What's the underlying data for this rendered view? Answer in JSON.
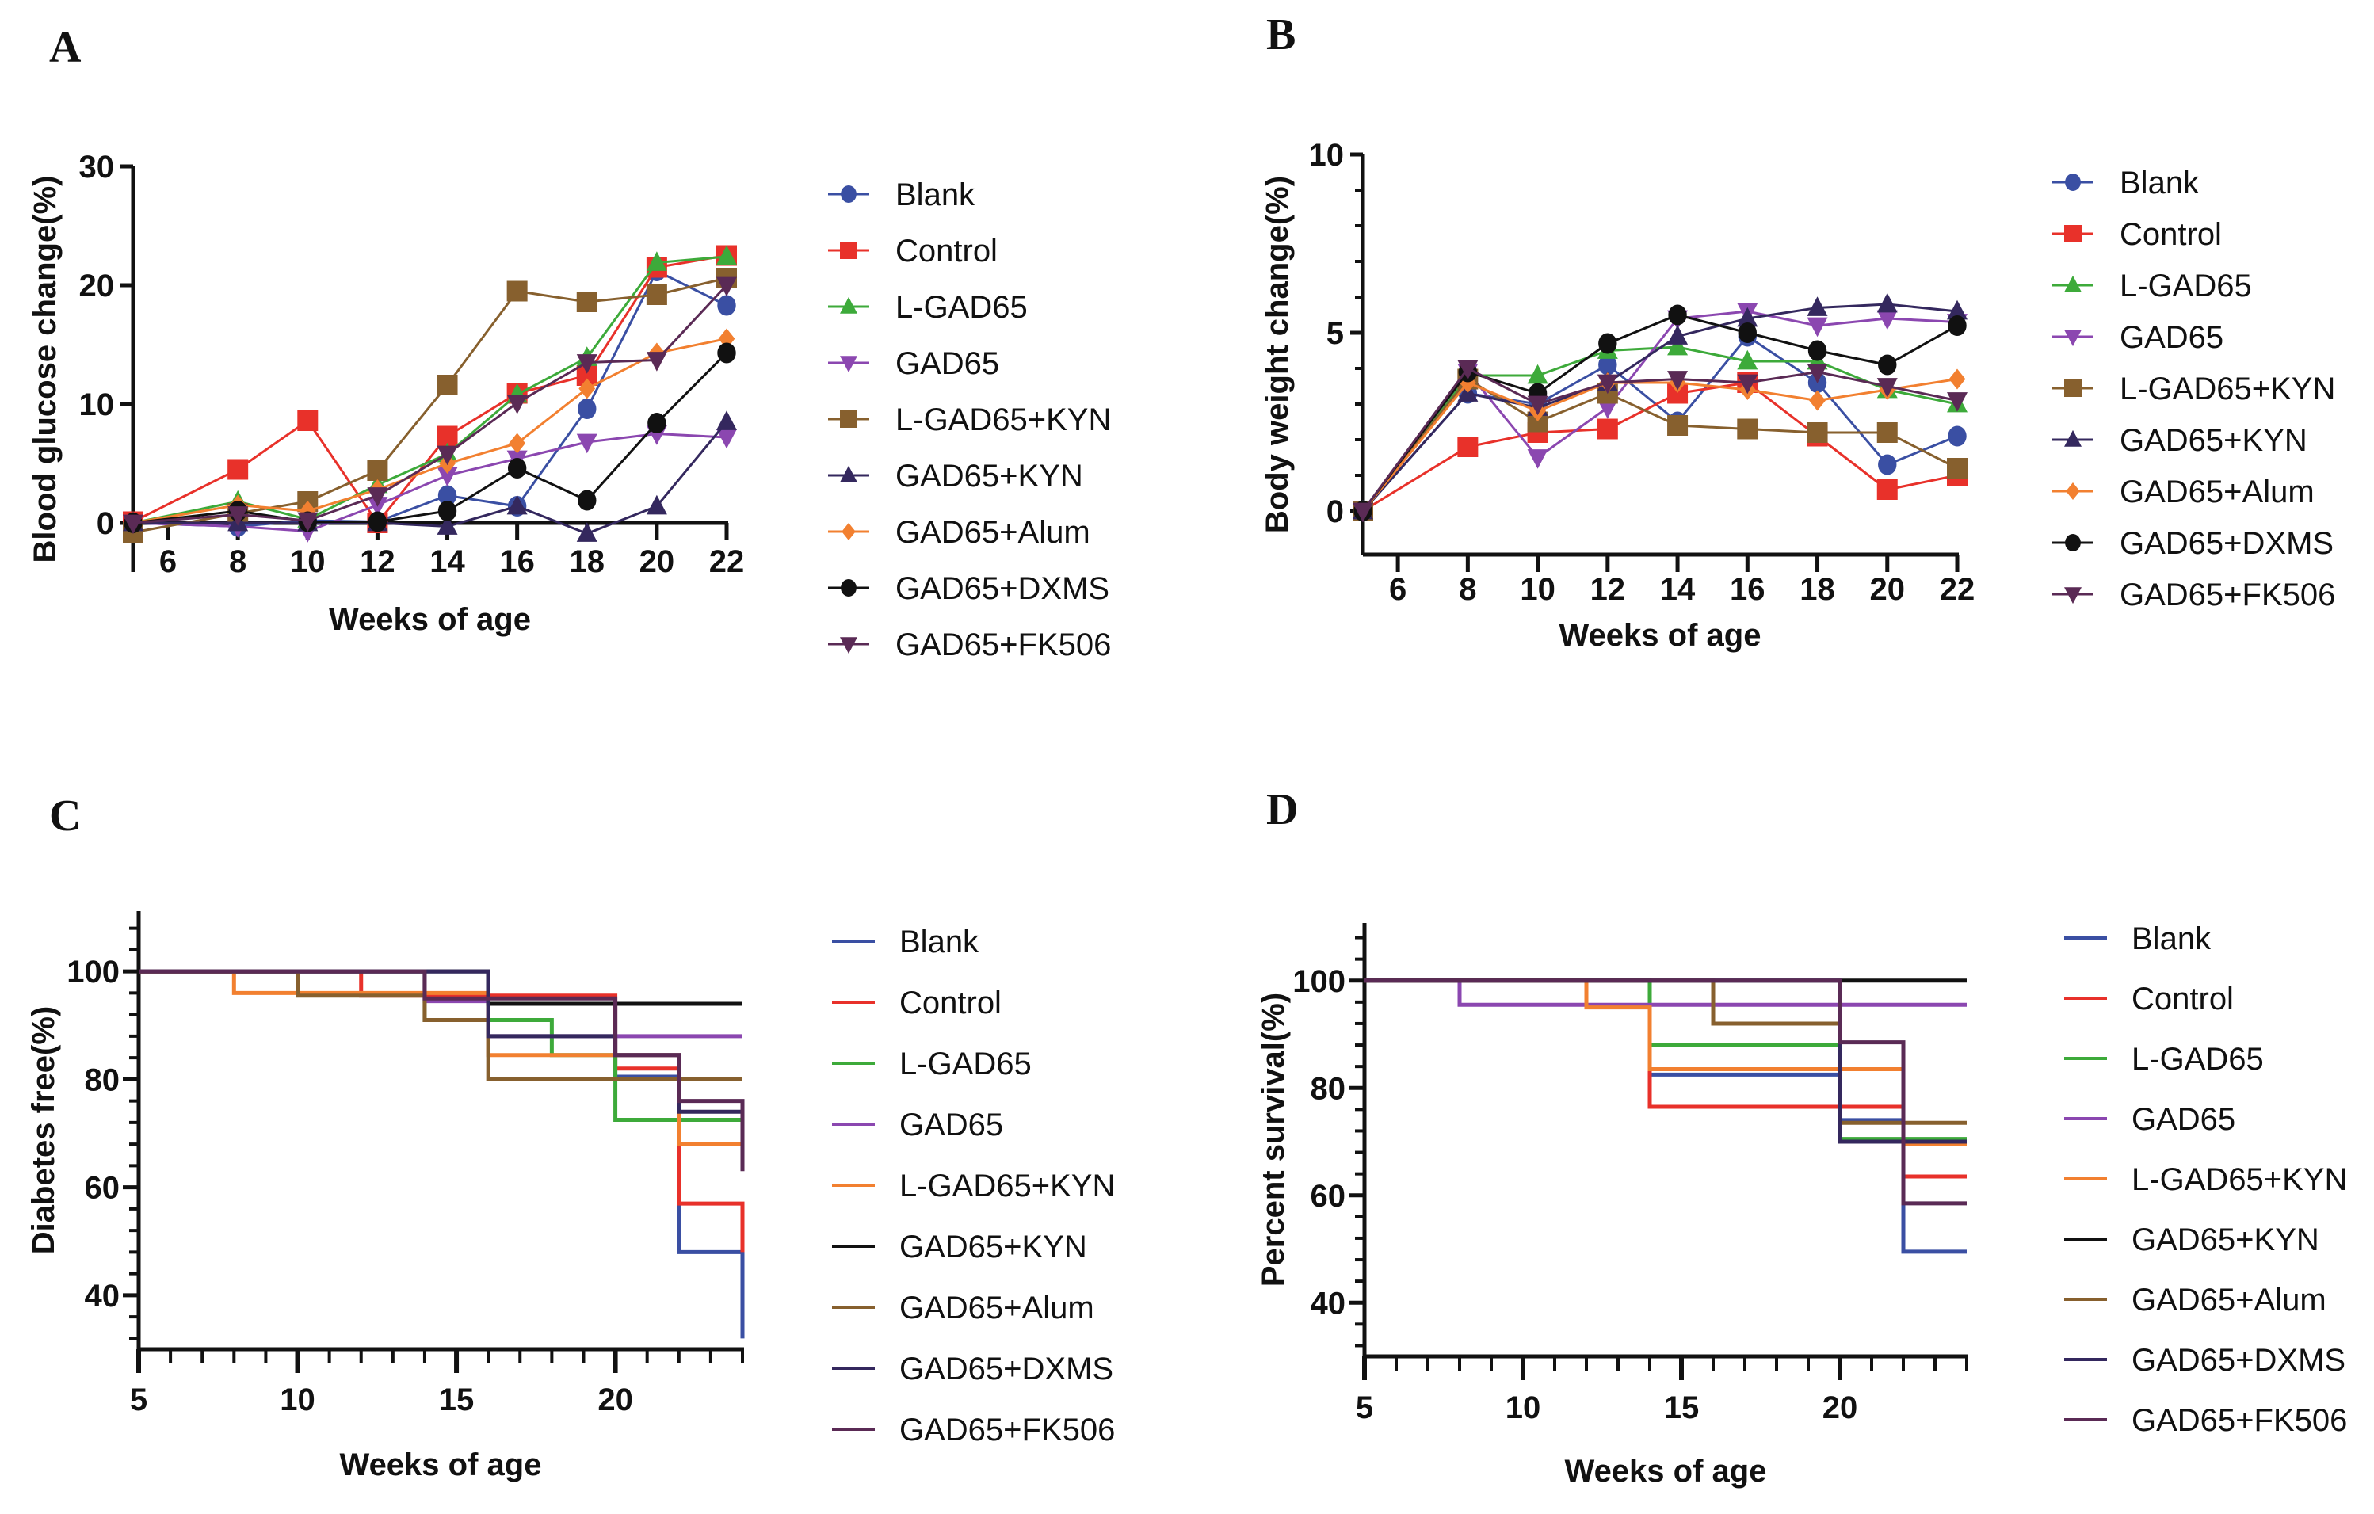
{
  "figure": {
    "panel_labels": [
      "A",
      "B",
      "C",
      "D"
    ]
  },
  "series_styles": [
    {
      "name": "Blank",
      "color": "#3a4fa3",
      "marker": "circle"
    },
    {
      "name": "Control",
      "color": "#e8312a",
      "marker": "square"
    },
    {
      "name": "L-GAD65",
      "color": "#3daa3a",
      "marker": "triangle-up"
    },
    {
      "name": "GAD65",
      "color": "#8b47b0",
      "marker": "triangle-down"
    },
    {
      "name": "L-GAD65+KYN",
      "color": "#87602e",
      "marker": "square"
    },
    {
      "name": "GAD65+KYN",
      "color": "#34285e",
      "marker": "triangle-up"
    },
    {
      "name": "GAD65+Alum",
      "color": "#f28030",
      "marker": "diamond"
    },
    {
      "name": "GAD65+DXMS",
      "color": "#111111",
      "marker": "circle"
    },
    {
      "name": "GAD65+FK506",
      "color": "#5a2a55",
      "marker": "triangle-down"
    }
  ],
  "km_styles": [
    {
      "name": "Blank",
      "color": "#3a4fa3"
    },
    {
      "name": "Control",
      "color": "#e8312a"
    },
    {
      "name": "L-GAD65",
      "color": "#3daa3a"
    },
    {
      "name": "GAD65",
      "color": "#8b47b0"
    },
    {
      "name": "L-GAD65+KYN",
      "color": "#f28030"
    },
    {
      "name": "GAD65+KYN",
      "color": "#111111"
    },
    {
      "name": "GAD65+Alum",
      "color": "#87602e"
    },
    {
      "name": "GAD65+DXMS",
      "color": "#34285e"
    },
    {
      "name": "GAD65+FK506",
      "color": "#5a2a55"
    }
  ],
  "chart_data": [
    {
      "panel": "A",
      "type": "line",
      "title": "",
      "xlabel": "Weeks of age",
      "ylabel": "Blood glucose change(%)",
      "xlim": [
        5,
        22
      ],
      "ylim": [
        -4,
        30
      ],
      "xticks": [
        "6",
        "8",
        "10",
        "12",
        "14",
        "16",
        "18",
        "20",
        "22"
      ],
      "yticks": [
        "0",
        "10",
        "20",
        "30"
      ],
      "legend": "right",
      "x": [
        5,
        8,
        10,
        12,
        14,
        16,
        18,
        20,
        22
      ],
      "series": [
        {
          "name": "Blank",
          "values": [
            0,
            -0.3,
            0.2,
            0.1,
            2.3,
            1.4,
            9.6,
            21.2,
            18.3
          ]
        },
        {
          "name": "Control",
          "values": [
            0.1,
            4.5,
            8.6,
            0,
            7.3,
            10.9,
            12.4,
            21.5,
            22.5
          ]
        },
        {
          "name": "L-GAD65",
          "values": [
            0,
            1.8,
            0.3,
            3.2,
            5.8,
            10.8,
            13.9,
            21.9,
            22.4
          ]
        },
        {
          "name": "GAD65",
          "values": [
            0,
            -0.3,
            -0.7,
            1.5,
            4.0,
            5.4,
            6.8,
            7.5,
            7.2
          ]
        },
        {
          "name": "L-GAD65+KYN",
          "values": [
            -0.8,
            0.8,
            1.8,
            4.4,
            11.6,
            19.5,
            18.6,
            19.2,
            20.6
          ]
        },
        {
          "name": "GAD65+KYN",
          "values": [
            0,
            0,
            0,
            0,
            -0.3,
            1.4,
            -0.9,
            1.4,
            8.5
          ]
        },
        {
          "name": "GAD65+Alum",
          "values": [
            0,
            1.5,
            1.0,
            2.8,
            5.0,
            6.7,
            11.3,
            14.3,
            15.5
          ]
        },
        {
          "name": "GAD65+DXMS",
          "values": [
            0,
            1.0,
            0.1,
            0.1,
            1.0,
            4.6,
            1.9,
            8.4,
            14.3
          ]
        },
        {
          "name": "GAD65+FK506",
          "values": [
            0,
            0.7,
            0.2,
            2.3,
            5.8,
            10.1,
            13.5,
            13.7,
            20.0
          ]
        }
      ]
    },
    {
      "panel": "B",
      "type": "line",
      "title": "",
      "xlabel": "Weeks of age",
      "ylabel": "Body weight change(%)",
      "xlim": [
        5,
        22
      ],
      "ylim": [
        -1,
        10
      ],
      "xticks": [
        "6",
        "8",
        "10",
        "12",
        "14",
        "16",
        "18",
        "20",
        "22"
      ],
      "yticks": [
        "0",
        "5",
        "10"
      ],
      "legend": "right",
      "x": [
        5,
        8,
        10,
        12,
        14,
        16,
        18,
        20,
        22
      ],
      "series": [
        {
          "name": "Blank",
          "values": [
            0,
            3.3,
            3.0,
            4.1,
            2.5,
            4.9,
            3.6,
            1.3,
            2.1
          ]
        },
        {
          "name": "Control",
          "values": [
            0,
            1.8,
            2.2,
            2.3,
            3.3,
            3.6,
            2.1,
            0.6,
            1.0
          ]
        },
        {
          "name": "L-GAD65",
          "values": [
            0,
            3.8,
            3.8,
            4.5,
            4.6,
            4.2,
            4.2,
            3.4,
            3.0
          ]
        },
        {
          "name": "GAD65",
          "values": [
            0,
            3.9,
            1.5,
            2.9,
            5.4,
            5.6,
            5.2,
            5.4,
            5.3
          ]
        },
        {
          "name": "L-GAD65+KYN",
          "values": [
            0,
            3.7,
            2.5,
            3.3,
            2.4,
            2.3,
            2.2,
            2.2,
            1.2
          ]
        },
        {
          "name": "GAD65+KYN",
          "values": [
            0,
            3.3,
            2.9,
            3.6,
            4.9,
            5.4,
            5.7,
            5.8,
            5.6
          ]
        },
        {
          "name": "GAD65+Alum",
          "values": [
            0,
            3.6,
            2.8,
            3.6,
            3.6,
            3.4,
            3.1,
            3.4,
            3.7
          ]
        },
        {
          "name": "GAD65+DXMS",
          "values": [
            0,
            3.9,
            3.3,
            4.7,
            5.5,
            5.0,
            4.5,
            4.1,
            5.2
          ]
        },
        {
          "name": "GAD65+FK506",
          "values": [
            0,
            4.0,
            3.0,
            3.6,
            3.7,
            3.6,
            3.9,
            3.5,
            3.1
          ]
        }
      ]
    },
    {
      "panel": "C",
      "type": "line",
      "subtype": "step (Kaplan-Meier)",
      "title": "",
      "xlabel": "Weeks of age",
      "ylabel": "Diabetes free(%)",
      "xlim": [
        5,
        24
      ],
      "ylim": [
        30,
        110
      ],
      "xticks": [
        "5",
        "10",
        "15",
        "20"
      ],
      "yticks": [
        "40",
        "60",
        "80",
        "100"
      ],
      "legend": "right",
      "series": [
        {
          "name": "Blank",
          "steps": [
            [
              5,
              100
            ],
            [
              16,
              94
            ],
            [
              20,
              80.5
            ],
            [
              22,
              48
            ],
            [
              24,
              32
            ]
          ]
        },
        {
          "name": "Control",
          "steps": [
            [
              5,
              100
            ],
            [
              12,
              95.5
            ],
            [
              20,
              82
            ],
            [
              22,
              57
            ],
            [
              24,
              48
            ]
          ]
        },
        {
          "name": "L-GAD65",
          "steps": [
            [
              5,
              100
            ],
            [
              14,
              91
            ],
            [
              18,
              84.5
            ],
            [
              20,
              72.5
            ],
            [
              24,
              72.5
            ]
          ]
        },
        {
          "name": "GAD65",
          "steps": [
            [
              5,
              100
            ],
            [
              14,
              94.5
            ],
            [
              16,
              88
            ],
            [
              24,
              88
            ]
          ]
        },
        {
          "name": "L-GAD65+KYN",
          "steps": [
            [
              5,
              100
            ],
            [
              8,
              96
            ],
            [
              16,
              84.5
            ],
            [
              22,
              68
            ],
            [
              24,
              68
            ]
          ]
        },
        {
          "name": "GAD65+KYN",
          "steps": [
            [
              5,
              100
            ],
            [
              16,
              94
            ],
            [
              24,
              94
            ]
          ]
        },
        {
          "name": "GAD65+Alum",
          "steps": [
            [
              5,
              100
            ],
            [
              10,
              95.5
            ],
            [
              14,
              91
            ],
            [
              16,
              80
            ],
            [
              24,
              80
            ]
          ]
        },
        {
          "name": "GAD65+DXMS",
          "steps": [
            [
              5,
              100
            ],
            [
              16,
              88
            ],
            [
              20,
              84.5
            ],
            [
              22,
              74
            ],
            [
              24,
              74
            ]
          ]
        },
        {
          "name": "GAD65+FK506",
          "steps": [
            [
              5,
              100
            ],
            [
              14,
              95
            ],
            [
              20,
              84.5
            ],
            [
              22,
              76
            ],
            [
              24,
              63
            ]
          ]
        }
      ]
    },
    {
      "panel": "D",
      "type": "line",
      "subtype": "step (Kaplan-Meier)",
      "title": "",
      "xlabel": "Weeks of age",
      "ylabel": "Percent survival(%)",
      "xlim": [
        5,
        24
      ],
      "ylim": [
        30,
        110
      ],
      "xticks": [
        "5",
        "10",
        "15",
        "20"
      ],
      "yticks": [
        "40",
        "60",
        "80",
        "100"
      ],
      "legend": "right",
      "series": [
        {
          "name": "Blank",
          "steps": [
            [
              5,
              100
            ],
            [
              14,
              82.5
            ],
            [
              20,
              74
            ],
            [
              22,
              49.5
            ],
            [
              24,
              49.5
            ]
          ]
        },
        {
          "name": "Control",
          "steps": [
            [
              5,
              100
            ],
            [
              14,
              76.5
            ],
            [
              22,
              63.5
            ],
            [
              24,
              63.5
            ]
          ]
        },
        {
          "name": "L-GAD65",
          "steps": [
            [
              5,
              100
            ],
            [
              14,
              88
            ],
            [
              20,
              70.5
            ],
            [
              24,
              70.5
            ]
          ]
        },
        {
          "name": "GAD65",
          "steps": [
            [
              5,
              100
            ],
            [
              8,
              95.5
            ],
            [
              24,
              95.5
            ]
          ]
        },
        {
          "name": "L-GAD65+KYN",
          "steps": [
            [
              5,
              100
            ],
            [
              12,
              95
            ],
            [
              14,
              83.5
            ],
            [
              22,
              69.5
            ],
            [
              24,
              69.5
            ]
          ]
        },
        {
          "name": "GAD65+KYN",
          "steps": [
            [
              5,
              100
            ],
            [
              24,
              100
            ]
          ]
        },
        {
          "name": "GAD65+Alum",
          "steps": [
            [
              5,
              100
            ],
            [
              16,
              92
            ],
            [
              20,
              73.5
            ],
            [
              24,
              73.5
            ]
          ]
        },
        {
          "name": "GAD65+DXMS",
          "steps": [
            [
              5,
              100
            ],
            [
              20,
              70
            ],
            [
              24,
              70
            ]
          ]
        },
        {
          "name": "GAD65+FK506",
          "steps": [
            [
              5,
              100
            ],
            [
              20,
              88.5
            ],
            [
              22,
              58.5
            ],
            [
              24,
              58.5
            ]
          ]
        }
      ]
    }
  ]
}
